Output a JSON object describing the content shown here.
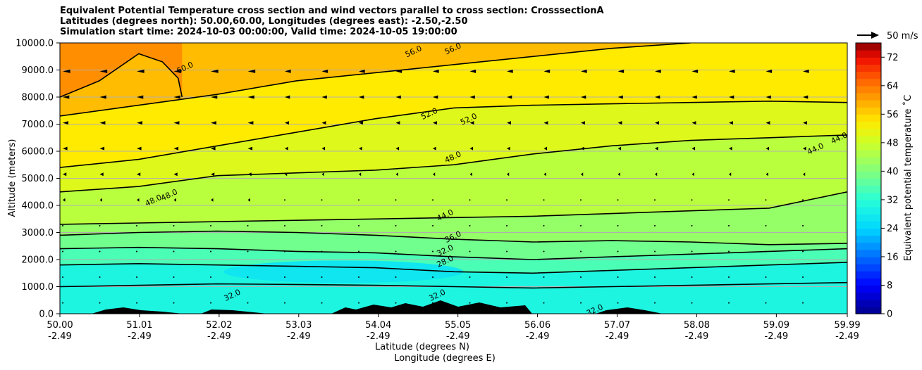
{
  "chart_data": {
    "type": "contour",
    "title_lines": [
      "Equivalent Potential Temperature cross section and wind vectors parallel to cross section: CrosssectionA",
      "Latitudes (degrees north): 50.00,60.00, Longitudes (degrees east): -2.50,-2.50",
      "Simulation start time: 2024-10-03 00:00:00, Valid time: 2024-10-05 19:00:00"
    ],
    "xlabel": "Latitude (degrees N)",
    "xlabel2": "Longitude (degrees E)",
    "ylabel": "Altitude (meters)",
    "xlim": [
      50.0,
      59.99
    ],
    "ylim": [
      0,
      10000
    ],
    "x_ticks": [
      {
        "lat": "50.00",
        "lon": "-2.49",
        "value": 50.0
      },
      {
        "lat": "51.01",
        "lon": "-2.49",
        "value": 51.01
      },
      {
        "lat": "52.02",
        "lon": "-2.49",
        "value": 52.02
      },
      {
        "lat": "53.03",
        "lon": "-2.49",
        "value": 53.03
      },
      {
        "lat": "54.04",
        "lon": "-2.49",
        "value": 54.04
      },
      {
        "lat": "55.05",
        "lon": "-2.49",
        "value": 55.05
      },
      {
        "lat": "56.06",
        "lon": "-2.49",
        "value": 56.06
      },
      {
        "lat": "57.07",
        "lon": "-2.49",
        "value": 57.07
      },
      {
        "lat": "58.08",
        "lon": "-2.49",
        "value": 58.08
      },
      {
        "lat": "59.09",
        "lon": "-2.49",
        "value": 59.09
      },
      {
        "lat": "59.99",
        "lon": "-2.49",
        "value": 59.99
      }
    ],
    "y_ticks": [
      {
        "label": "0.0",
        "value": 0
      },
      {
        "label": "1000.0",
        "value": 1000
      },
      {
        "label": "2000.0",
        "value": 2000
      },
      {
        "label": "3000.0",
        "value": 3000
      },
      {
        "label": "4000.0",
        "value": 4000
      },
      {
        "label": "5000.0",
        "value": 5000
      },
      {
        "label": "6000.0",
        "value": 6000
      },
      {
        "label": "7000.0",
        "value": 7000
      },
      {
        "label": "8000.0",
        "value": 8000
      },
      {
        "label": "9000.0",
        "value": 9000
      },
      {
        "label": "10000.0",
        "value": 10000
      }
    ],
    "grid": "horizontal",
    "colorbar": {
      "label": "Equivalent potential temperature ˚C",
      "min": 0,
      "max": 76,
      "step": 2,
      "ticks": [
        {
          "label": "0",
          "value": 0
        },
        {
          "label": "8",
          "value": 8
        },
        {
          "label": "16",
          "value": 16
        },
        {
          "label": "24",
          "value": 24
        },
        {
          "label": "32",
          "value": 32
        },
        {
          "label": "40",
          "value": 40
        },
        {
          "label": "48",
          "value": 48
        },
        {
          "label": "56",
          "value": 56
        },
        {
          "label": "64",
          "value": 64
        },
        {
          "label": "72",
          "value": 72
        }
      ]
    },
    "wind_key": {
      "label": "50 m/s"
    },
    "contours": [
      {
        "level": 28,
        "points": [
          [
            50.0,
            1000
          ],
          [
            51.0,
            1050
          ],
          [
            52.0,
            1100
          ],
          [
            53.0,
            1080
          ],
          [
            54.0,
            1050
          ],
          [
            55.0,
            1000
          ],
          [
            56.0,
            950
          ],
          [
            57.0,
            1000
          ],
          [
            58.0,
            1050
          ],
          [
            59.0,
            1100
          ],
          [
            59.99,
            1150
          ]
        ]
      },
      {
        "level": 32,
        "points": [
          [
            50.0,
            1800
          ],
          [
            51.0,
            1850
          ],
          [
            52.0,
            1800
          ],
          [
            53.0,
            1750
          ],
          [
            54.0,
            1700
          ],
          [
            55.0,
            1550
          ],
          [
            56.0,
            1500
          ],
          [
            57.0,
            1600
          ],
          [
            58.0,
            1700
          ],
          [
            59.0,
            1800
          ],
          [
            59.99,
            1900
          ]
        ]
      },
      {
        "level": 36,
        "points": [
          [
            50.0,
            2400
          ],
          [
            51.0,
            2450
          ],
          [
            52.0,
            2400
          ],
          [
            53.0,
            2300
          ],
          [
            54.0,
            2250
          ],
          [
            55.0,
            2100
          ],
          [
            56.0,
            2000
          ],
          [
            57.0,
            2100
          ],
          [
            58.0,
            2200
          ],
          [
            59.0,
            2300
          ],
          [
            59.99,
            2400
          ]
        ]
      },
      {
        "level": 40,
        "points": [
          [
            50.0,
            2900
          ],
          [
            51.0,
            3000
          ],
          [
            52.0,
            3050
          ],
          [
            53.0,
            3000
          ],
          [
            54.0,
            2900
          ],
          [
            55.0,
            2750
          ],
          [
            56.0,
            2650
          ],
          [
            57.0,
            2700
          ],
          [
            58.0,
            2650
          ],
          [
            59.0,
            2550
          ],
          [
            59.99,
            2600
          ]
        ]
      },
      {
        "level": 44,
        "points": [
          [
            50.0,
            3300
          ],
          [
            51.0,
            3350
          ],
          [
            52.0,
            3400
          ],
          [
            53.0,
            3450
          ],
          [
            54.0,
            3500
          ],
          [
            55.0,
            3550
          ],
          [
            56.0,
            3600
          ],
          [
            57.0,
            3700
          ],
          [
            58.0,
            3800
          ],
          [
            59.0,
            3900
          ],
          [
            59.99,
            4500
          ]
        ]
      },
      {
        "level": 48,
        "points": [
          [
            50.0,
            4500
          ],
          [
            51.0,
            4700
          ],
          [
            52.0,
            5100
          ],
          [
            53.0,
            5200
          ],
          [
            54.0,
            5300
          ],
          [
            55.0,
            5500
          ],
          [
            56.0,
            5900
          ],
          [
            57.0,
            6200
          ],
          [
            58.0,
            6400
          ],
          [
            59.0,
            6500
          ],
          [
            59.99,
            6600
          ]
        ]
      },
      {
        "level": 52,
        "points": [
          [
            50.0,
            5400
          ],
          [
            51.0,
            5700
          ],
          [
            52.0,
            6200
          ],
          [
            53.0,
            6700
          ],
          [
            54.0,
            7200
          ],
          [
            55.0,
            7600
          ],
          [
            56.0,
            7700
          ],
          [
            57.0,
            7750
          ],
          [
            58.0,
            7800
          ],
          [
            59.0,
            7850
          ],
          [
            59.99,
            7800
          ]
        ]
      },
      {
        "level": 56,
        "points": [
          [
            50.0,
            7300
          ],
          [
            51.0,
            7700
          ],
          [
            52.0,
            8100
          ],
          [
            53.0,
            8600
          ],
          [
            54.0,
            8900
          ],
          [
            55.0,
            9200
          ],
          [
            56.0,
            9500
          ],
          [
            57.0,
            9800
          ],
          [
            58.0,
            10000
          ]
        ]
      },
      {
        "level": 60,
        "points": [
          [
            50.0,
            8000
          ],
          [
            50.5,
            8600
          ],
          [
            51.0,
            9600
          ],
          [
            51.3,
            9300
          ],
          [
            51.5,
            8700
          ],
          [
            51.55,
            8000
          ]
        ]
      }
    ],
    "contour_labels": [
      {
        "text": "60.0",
        "x": 51.6,
        "y": 9000
      },
      {
        "text": "56.0",
        "x": 54.5,
        "y": 9600
      },
      {
        "text": "56.0",
        "x": 55.0,
        "y": 9700
      },
      {
        "text": "52.0",
        "x": 54.7,
        "y": 7300
      },
      {
        "text": "52.0",
        "x": 55.2,
        "y": 7100
      },
      {
        "text": "48.0",
        "x": 55.0,
        "y": 5700
      },
      {
        "text": "48.0",
        "x": 51.2,
        "y": 4100
      },
      {
        "text": "48.0",
        "x": 51.4,
        "y": 4300
      },
      {
        "text": "44.0",
        "x": 54.9,
        "y": 3550
      },
      {
        "text": "44.0",
        "x": 59.6,
        "y": 6000
      },
      {
        "text": "44.0",
        "x": 59.9,
        "y": 6400
      },
      {
        "text": "36.0",
        "x": 55.0,
        "y": 2750
      },
      {
        "text": "32.0",
        "x": 54.9,
        "y": 2250
      },
      {
        "text": "28.0",
        "x": 54.9,
        "y": 1850
      },
      {
        "text": "32.0",
        "x": 52.2,
        "y": 600
      },
      {
        "text": "32.0",
        "x": 54.8,
        "y": 600
      },
      {
        "text": "32.0",
        "x": 56.8,
        "y": 50
      }
    ]
  }
}
